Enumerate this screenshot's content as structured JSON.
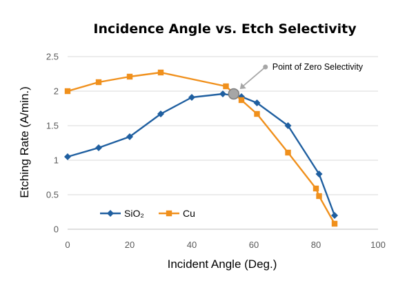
{
  "chart_data": {
    "type": "line",
    "title": "Incidence Angle vs. Etch Selectivity",
    "xlabel": "Incident Angle (Deg.)",
    "ylabel": "Etching Rate (A/min.)",
    "xlim": [
      0,
      100
    ],
    "ylim": [
      0,
      2.5
    ],
    "x_ticks": [
      "0",
      "20",
      "40",
      "60",
      "80",
      "100"
    ],
    "y_ticks": [
      "0",
      "0.5",
      "1",
      "1.5",
      "2",
      "2.5"
    ],
    "grid": "horizontal",
    "legend_position": "bottom-left",
    "series": [
      {
        "name": "SiO₂",
        "color": "#1f5fa0",
        "marker": "diamond",
        "x": [
          0,
          10,
          20,
          30,
          40,
          50,
          56,
          61,
          71,
          81,
          86
        ],
        "y": [
          1.05,
          1.18,
          1.34,
          1.67,
          1.91,
          1.96,
          1.92,
          1.83,
          1.5,
          0.8,
          0.2
        ]
      },
      {
        "name": "Cu",
        "color": "#f0901c",
        "marker": "square",
        "x": [
          0,
          10,
          20,
          30,
          51,
          56,
          61,
          71,
          80,
          81,
          86
        ],
        "y": [
          2.0,
          2.13,
          2.21,
          2.27,
          2.07,
          1.87,
          1.67,
          1.11,
          0.59,
          0.48,
          0.08
        ]
      }
    ],
    "annotation": {
      "text": "Point of Zero Selectivity",
      "point": {
        "x": 53.5,
        "y": 1.96
      },
      "color": "#a6a6a6"
    }
  }
}
